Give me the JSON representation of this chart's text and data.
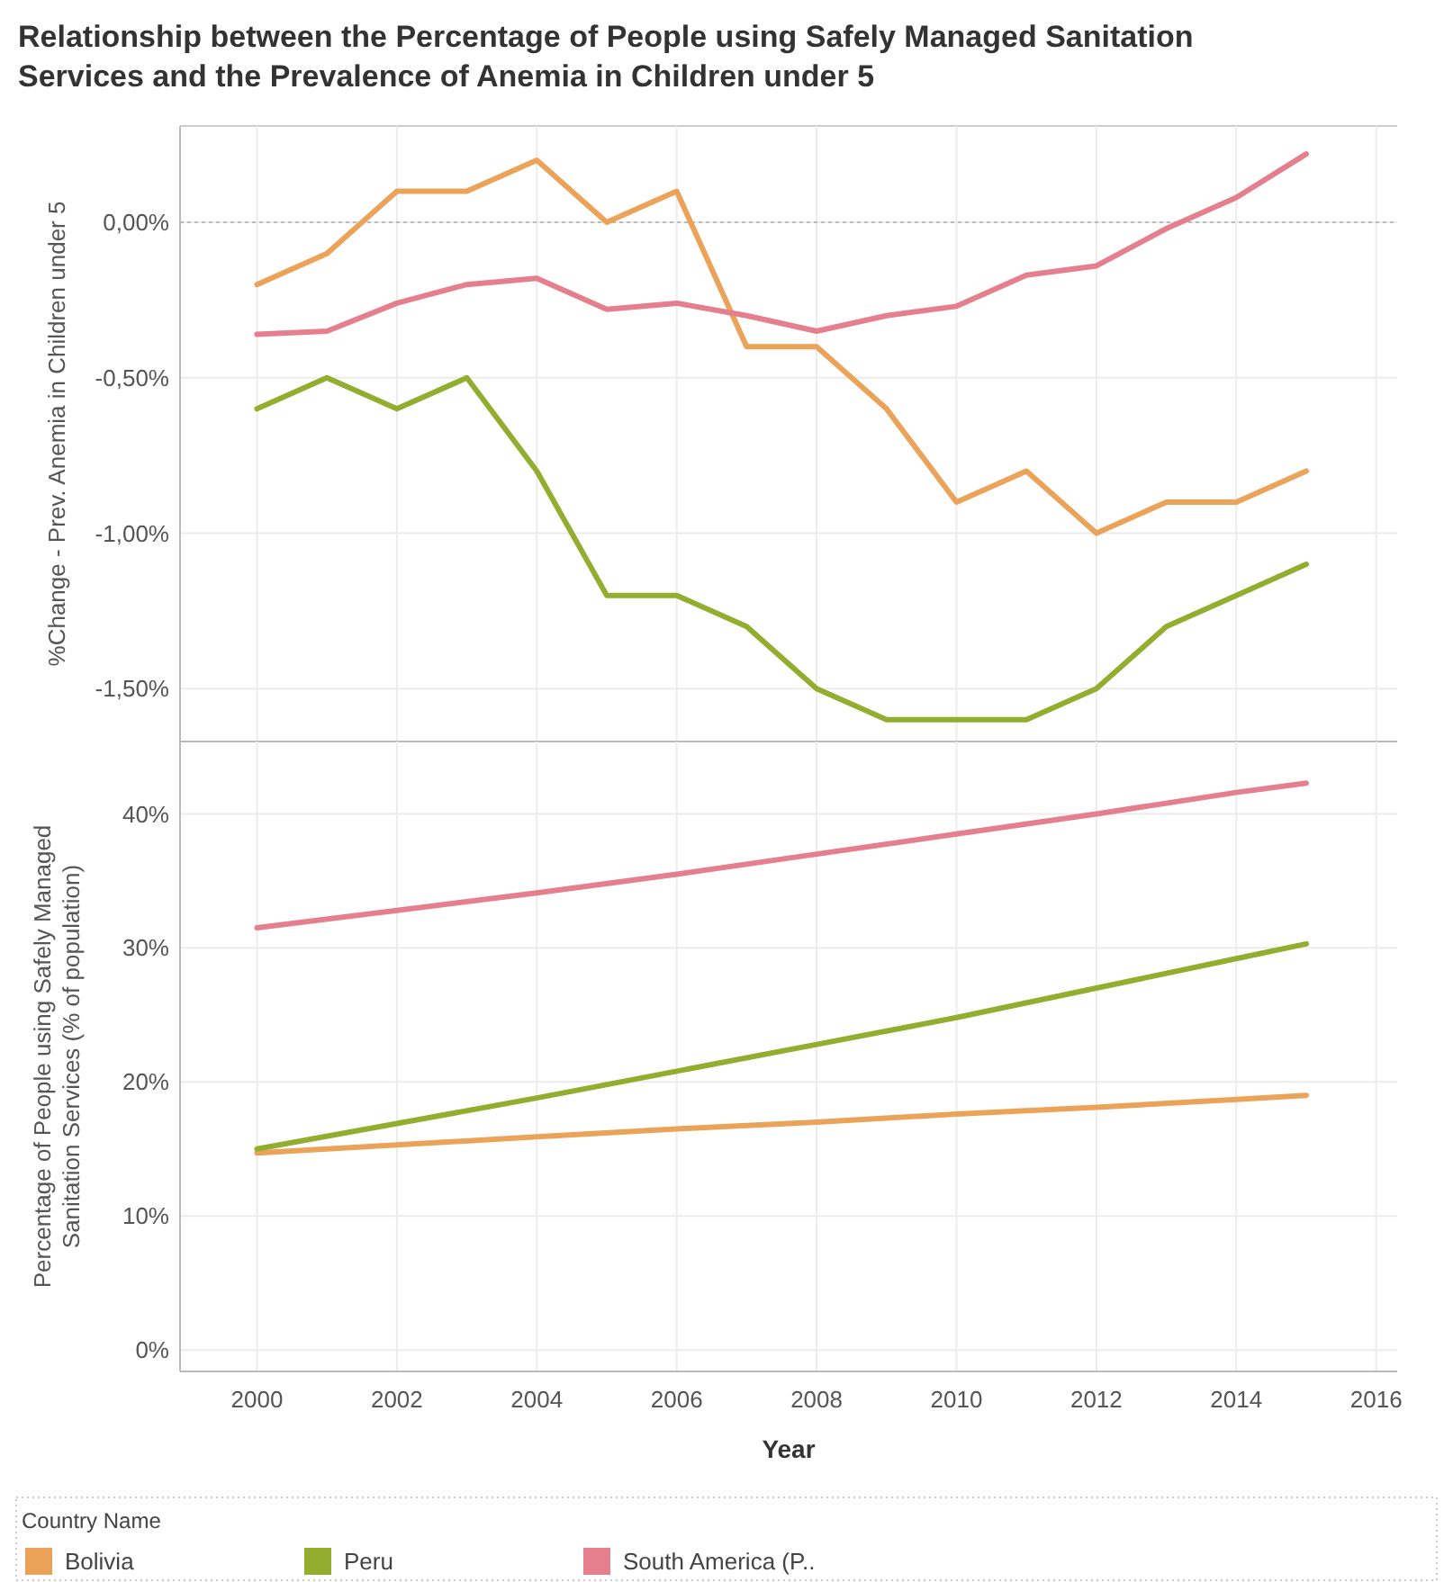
{
  "chart_data": [
    {
      "type": "line",
      "title": "Relationship between the Percentage of People using Safely Managed Sanitation Services and the Prevalence of Anemia in Children under 5",
      "ylabel": "%Change - Prev. Anemia in Children under 5",
      "xlim": [
        1998.9,
        2016.3
      ],
      "xticks": [
        2000,
        2002,
        2004,
        2006,
        2008,
        2010,
        2012,
        2014,
        2016
      ],
      "ylim": [
        -1.67,
        0.31
      ],
      "yticks": [
        {
          "value": -1.5,
          "label": "-1,50%"
        },
        {
          "value": -1,
          "label": "-1,00%"
        },
        {
          "value": -0.5,
          "label": "-0,50%"
        },
        {
          "value": 0,
          "label": "0,00%"
        }
      ],
      "tick_labels": "y",
      "grid": true,
      "legend": "bottom",
      "legend_title": "Country Name",
      "ref_lines": [
        {
          "axis": "y",
          "value": 0,
          "line_style": "dotted",
          "color": "#bbbbbb"
        }
      ],
      "x": [
        2000,
        2001,
        2002,
        2003,
        2004,
        2005,
        2006,
        2007,
        2008,
        2009,
        2010,
        2011,
        2012,
        2013,
        2014,
        2015
      ],
      "series": [
        {
          "name": "Bolivia",
          "color": "#eba35a",
          "values": [
            -0.2,
            -0.1,
            0.1,
            0.1,
            0.2,
            0,
            0.1,
            -0.4,
            -0.4,
            -0.6,
            -0.9,
            -0.8,
            -1.0,
            -0.9,
            -0.9,
            -0.8
          ]
        },
        {
          "name": "Peru",
          "color": "#93ad2f",
          "values": [
            -0.6,
            -0.5,
            -0.6,
            -0.5,
            -0.8,
            -1.2,
            -1.2,
            -1.3,
            -1.5,
            -1.6,
            -1.6,
            -1.6,
            -1.5,
            -1.3,
            -1.2,
            -1.1
          ]
        },
        {
          "name": "South America (P..",
          "color": "#e57e8d",
          "values": [
            -0.36,
            -0.35,
            -0.26,
            -0.2,
            -0.18,
            -0.28,
            -0.26,
            -0.3,
            -0.35,
            -0.3,
            -0.27,
            -0.17,
            -0.14,
            -0.02,
            0.08,
            0.22
          ]
        }
      ]
    },
    {
      "type": "line",
      "xlabel": "Year",
      "ylabel": "Percentage of People using Safely Managed Sanitation Services (% of population)",
      "xlim": [
        1998.9,
        2016.3
      ],
      "xticks": [
        2000,
        2002,
        2004,
        2006,
        2008,
        2010,
        2012,
        2014,
        2016
      ],
      "ylim": [
        -1.6,
        45.4
      ],
      "yticks": [
        {
          "value": 0,
          "label": "0%"
        },
        {
          "value": 10,
          "label": "10%"
        },
        {
          "value": 20,
          "label": "20%"
        },
        {
          "value": 30,
          "label": "30%"
        },
        {
          "value": 40,
          "label": "40%"
        }
      ],
      "grid": true,
      "x": [
        2000,
        2002,
        2004,
        2006,
        2008,
        2010,
        2012,
        2014,
        2015
      ],
      "series": [
        {
          "color": "#eba35a",
          "values": [
            14.7,
            15.3,
            15.9,
            16.5,
            17.0,
            17.6,
            18.1,
            18.7,
            19.0
          ]
        },
        {
          "color": "#93ad2f",
          "values": [
            15.0,
            16.9,
            18.8,
            20.8,
            22.8,
            24.8,
            27.0,
            29.2,
            30.3
          ]
        },
        {
          "color": "#e57e8d",
          "values": [
            31.5,
            32.8,
            34.1,
            35.5,
            37.0,
            38.5,
            40.0,
            41.6,
            42.3
          ]
        }
      ]
    }
  ]
}
